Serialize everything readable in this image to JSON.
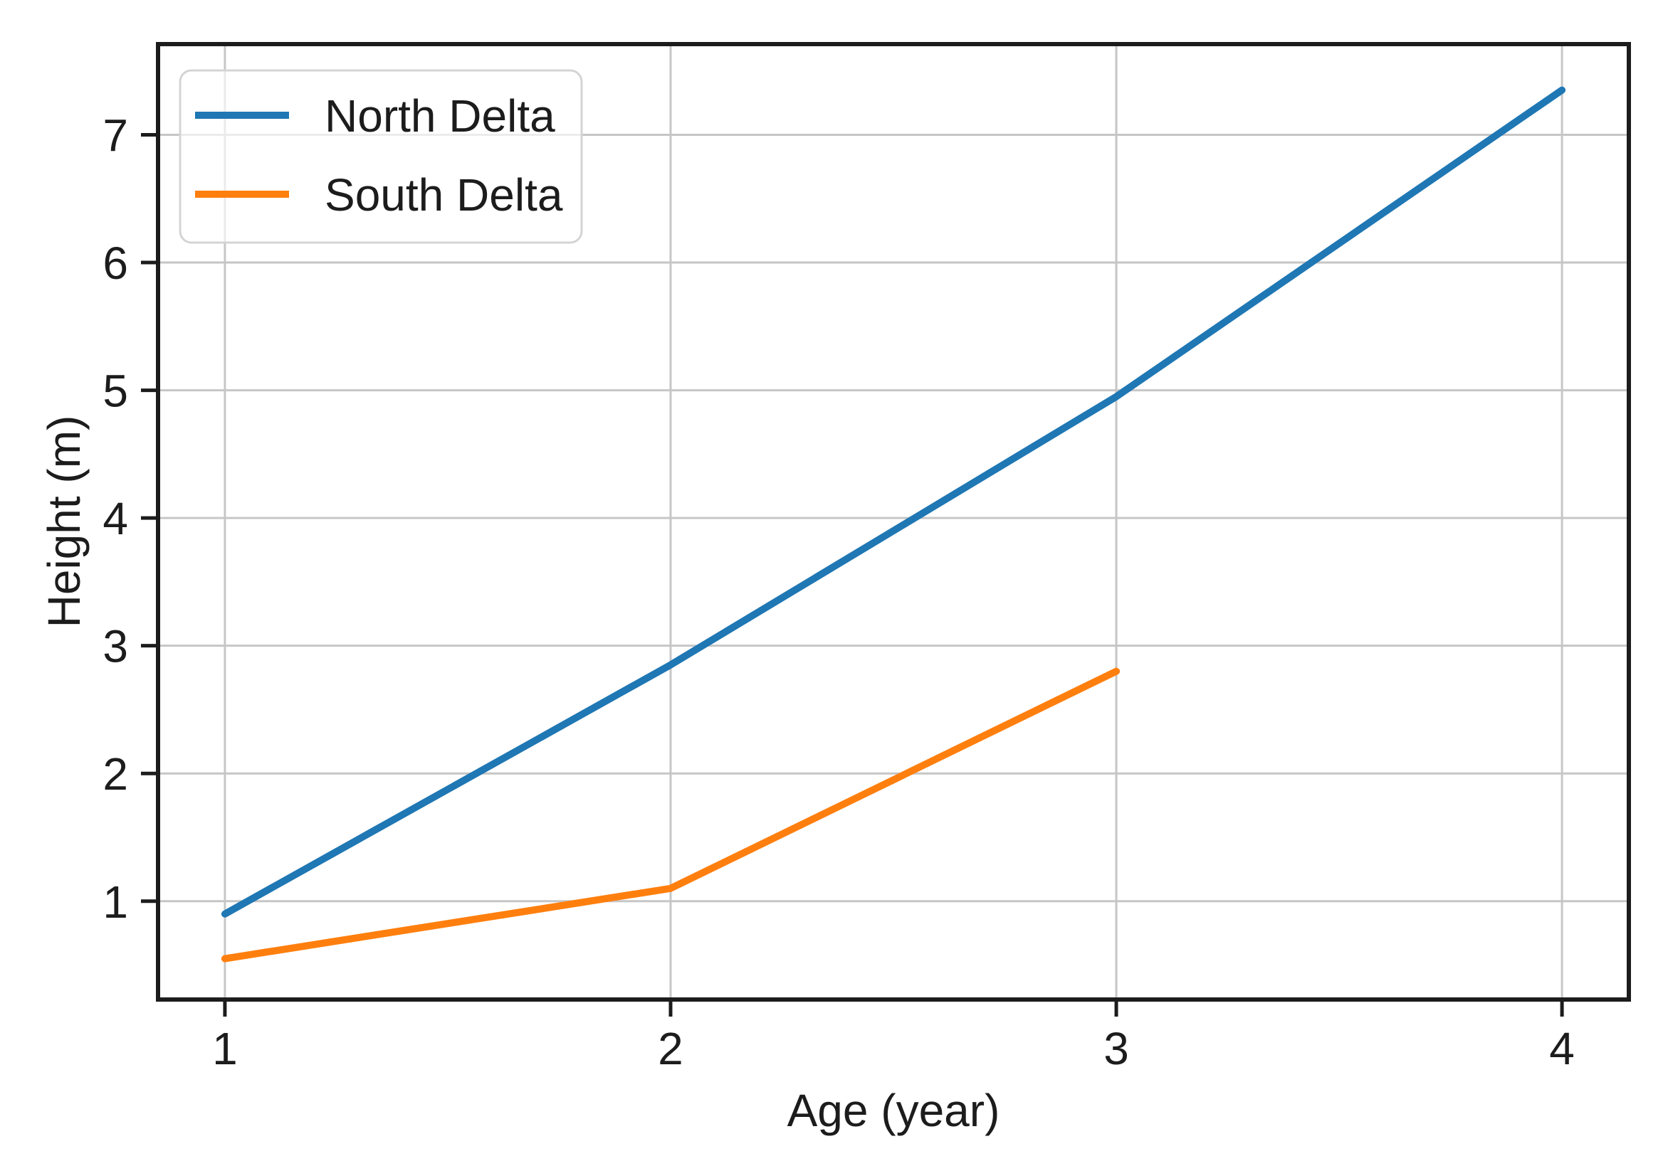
{
  "page": {
    "background": "#ffffff"
  },
  "chart_data": {
    "type": "line",
    "title": "",
    "xlabel": "Age (year)",
    "ylabel": "Height (m)",
    "x": [
      1,
      2,
      3,
      4
    ],
    "series": [
      {
        "name": "North Delta",
        "color": "#1f77b4",
        "values": [
          0.9,
          2.85,
          4.95,
          7.35
        ]
      },
      {
        "name": "South Delta",
        "color": "#ff7f0e",
        "values": [
          0.55,
          1.1,
          2.8
        ]
      }
    ],
    "xticks": [
      1,
      2,
      3,
      4
    ],
    "yticks": [
      1,
      2,
      3,
      4,
      5,
      6,
      7
    ],
    "xlim": [
      0.85,
      4.15
    ],
    "ylim": [
      0.23,
      7.71
    ],
    "grid": true,
    "legend": {
      "position": "upper left",
      "entries": [
        "North Delta",
        "South Delta"
      ]
    },
    "colors": {
      "grid": "#c6c6c6",
      "axis": "#1c1c1c",
      "text": "#1c1c1c",
      "legend_border": "#d4d4d4",
      "legend_background": "rgba(255,255,255,0.65)"
    }
  }
}
